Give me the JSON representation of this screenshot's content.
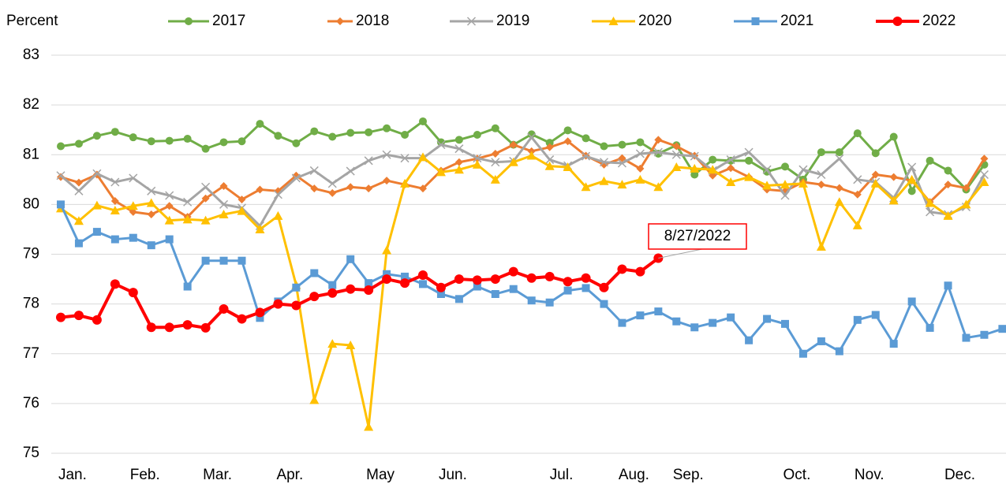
{
  "chart_data": {
    "type": "line",
    "y_label": "Percent",
    "categories": [
      null,
      "Jan.",
      null,
      null,
      null,
      "Feb.",
      null,
      null,
      null,
      "Mar.",
      null,
      null,
      null,
      "Apr.",
      null,
      null,
      null,
      null,
      "May",
      null,
      null,
      null,
      "Jun.",
      null,
      null,
      null,
      null,
      null,
      "Jul.",
      null,
      null,
      null,
      "Aug.",
      null,
      null,
      "Sep.",
      null,
      null,
      null,
      null,
      null,
      "Oct.",
      null,
      null,
      null,
      "Nov.",
      null,
      null,
      null,
      null,
      "Dec.",
      null,
      null
    ],
    "ylim": [
      75,
      83
    ],
    "yticks": [
      75,
      76,
      77,
      78,
      79,
      80,
      81,
      82,
      83
    ],
    "grid": true,
    "series": [
      {
        "name": "2017",
        "color": "#70ad47",
        "marker": "circle",
        "values": [
          81.17,
          81.22,
          81.38,
          81.46,
          81.35,
          81.27,
          81.28,
          81.32,
          81.12,
          81.25,
          81.27,
          81.62,
          81.38,
          81.23,
          81.47,
          81.36,
          81.44,
          81.45,
          81.53,
          81.4,
          81.67,
          81.25,
          81.3,
          81.4,
          81.53,
          81.2,
          81.41,
          81.24,
          81.49,
          81.33,
          81.17,
          81.2,
          81.25,
          81.02,
          81.19,
          80.6,
          80.9,
          80.88,
          80.88,
          80.66,
          80.76,
          80.5,
          81.05,
          81.05,
          81.43,
          81.03,
          81.36,
          80.27,
          80.88,
          80.68,
          80.3,
          80.8,
          null
        ]
      },
      {
        "name": "2018",
        "color": "#ed7d31",
        "marker": "diamond",
        "values": [
          80.55,
          80.44,
          80.6,
          80.07,
          79.85,
          79.8,
          79.97,
          79.75,
          80.12,
          80.37,
          80.1,
          80.3,
          80.27,
          80.58,
          80.32,
          80.23,
          80.35,
          80.32,
          80.48,
          80.4,
          80.32,
          80.68,
          80.85,
          80.92,
          81.02,
          81.2,
          81.07,
          81.15,
          81.27,
          80.98,
          80.8,
          80.93,
          80.72,
          81.3,
          81.17,
          80.98,
          80.58,
          80.73,
          80.55,
          80.3,
          80.27,
          80.45,
          80.4,
          80.33,
          80.2,
          80.6,
          80.55,
          80.48,
          80.05,
          80.4,
          80.33,
          80.92,
          null
        ]
      },
      {
        "name": "2019",
        "color": "#a5a5a5",
        "marker": "x",
        "values": [
          80.58,
          80.27,
          80.62,
          80.45,
          80.53,
          80.27,
          80.18,
          80.05,
          80.35,
          80.0,
          79.93,
          79.57,
          80.2,
          80.53,
          80.68,
          80.42,
          80.67,
          80.88,
          81.0,
          80.93,
          80.93,
          81.2,
          81.12,
          80.93,
          80.85,
          80.87,
          81.35,
          80.9,
          80.78,
          80.97,
          80.85,
          80.83,
          81.02,
          81.05,
          81.0,
          80.97,
          80.68,
          80.9,
          81.05,
          80.7,
          80.18,
          80.7,
          80.6,
          80.92,
          80.5,
          80.45,
          80.13,
          80.75,
          79.85,
          79.8,
          79.95,
          80.6,
          null
        ]
      },
      {
        "name": "2020",
        "color": "#ffc000",
        "marker": "triangle",
        "values": [
          79.92,
          79.67,
          79.98,
          79.88,
          79.97,
          80.03,
          79.68,
          79.7,
          79.68,
          79.8,
          79.87,
          79.5,
          79.77,
          78.38,
          76.07,
          77.2,
          77.17,
          75.53,
          79.08,
          80.42,
          80.95,
          80.65,
          80.7,
          80.8,
          80.5,
          80.85,
          80.98,
          80.77,
          80.75,
          80.35,
          80.47,
          80.4,
          80.5,
          80.35,
          80.75,
          80.72,
          80.7,
          80.45,
          80.55,
          80.38,
          80.4,
          80.42,
          79.15,
          80.05,
          79.58,
          80.42,
          80.08,
          80.5,
          80.03,
          79.77,
          80.0,
          80.45,
          null
        ]
      },
      {
        "name": "2021",
        "color": "#5b9bd5",
        "marker": "square",
        "values": [
          80.0,
          79.22,
          79.45,
          79.3,
          79.33,
          79.18,
          79.3,
          78.35,
          78.87,
          78.87,
          78.87,
          77.72,
          78.05,
          78.33,
          78.62,
          78.38,
          78.9,
          78.42,
          78.6,
          78.55,
          78.4,
          78.2,
          78.1,
          78.35,
          78.2,
          78.3,
          78.07,
          78.03,
          78.27,
          78.32,
          78.0,
          77.62,
          77.77,
          77.85,
          77.65,
          77.53,
          77.62,
          77.73,
          77.27,
          77.7,
          77.6,
          77.0,
          77.25,
          77.05,
          77.68,
          77.78,
          77.2,
          78.05,
          77.52,
          78.37,
          77.32,
          77.38,
          77.5
        ]
      },
      {
        "name": "2022",
        "color": "#ff0000",
        "marker": "circle",
        "values": [
          77.73,
          77.77,
          77.68,
          78.4,
          78.23,
          77.53,
          77.53,
          77.58,
          77.52,
          77.9,
          77.7,
          77.83,
          78.0,
          77.97,
          78.15,
          78.22,
          78.3,
          78.28,
          78.5,
          78.42,
          78.58,
          78.33,
          78.5,
          78.48,
          78.5,
          78.65,
          78.52,
          78.55,
          78.45,
          78.52,
          78.33,
          78.7,
          78.65,
          78.92,
          null,
          null,
          null,
          null,
          null,
          null,
          null,
          null,
          null,
          null,
          null,
          null,
          null,
          null,
          null,
          null,
          null,
          null,
          null
        ]
      }
    ],
    "annotation": "8/27/2022"
  }
}
